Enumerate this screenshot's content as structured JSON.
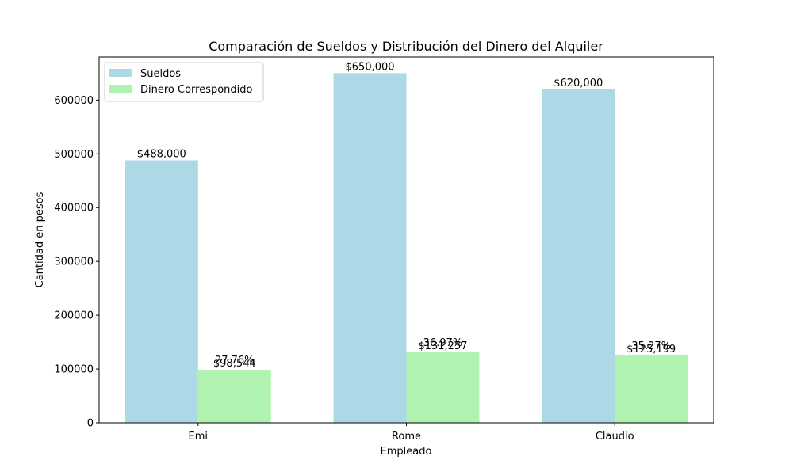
{
  "chart_data": {
    "type": "bar",
    "title": "Comparación de Sueldos y Distribución del Dinero del Alquiler",
    "xlabel": "Empleado",
    "ylabel": "Cantidad en pesos",
    "categories": [
      "Emi",
      "Rome",
      "Claudio"
    ],
    "ylim": [
      0,
      680000
    ],
    "yticks": [
      0,
      100000,
      200000,
      300000,
      400000,
      500000,
      600000
    ],
    "ytick_labels": [
      "0",
      "100000",
      "200000",
      "300000",
      "400000",
      "500000",
      "600000"
    ],
    "legend_position": "top-left",
    "grid": false,
    "series": [
      {
        "name": "Sueldos",
        "color": "#add8e6",
        "values": [
          488000,
          650000,
          620000
        ],
        "value_labels": [
          "$488,000",
          "$650,000",
          "$620,000"
        ]
      },
      {
        "name": "Dinero Correspondido",
        "color": "#b0f3b0",
        "values": [
          98544,
          131257,
          125199
        ],
        "value_labels": [
          "$98,544",
          "$131,257",
          "$125,199"
        ],
        "percent_labels": [
          "27.76%",
          "36.97%",
          "35.27%"
        ]
      }
    ]
  }
}
